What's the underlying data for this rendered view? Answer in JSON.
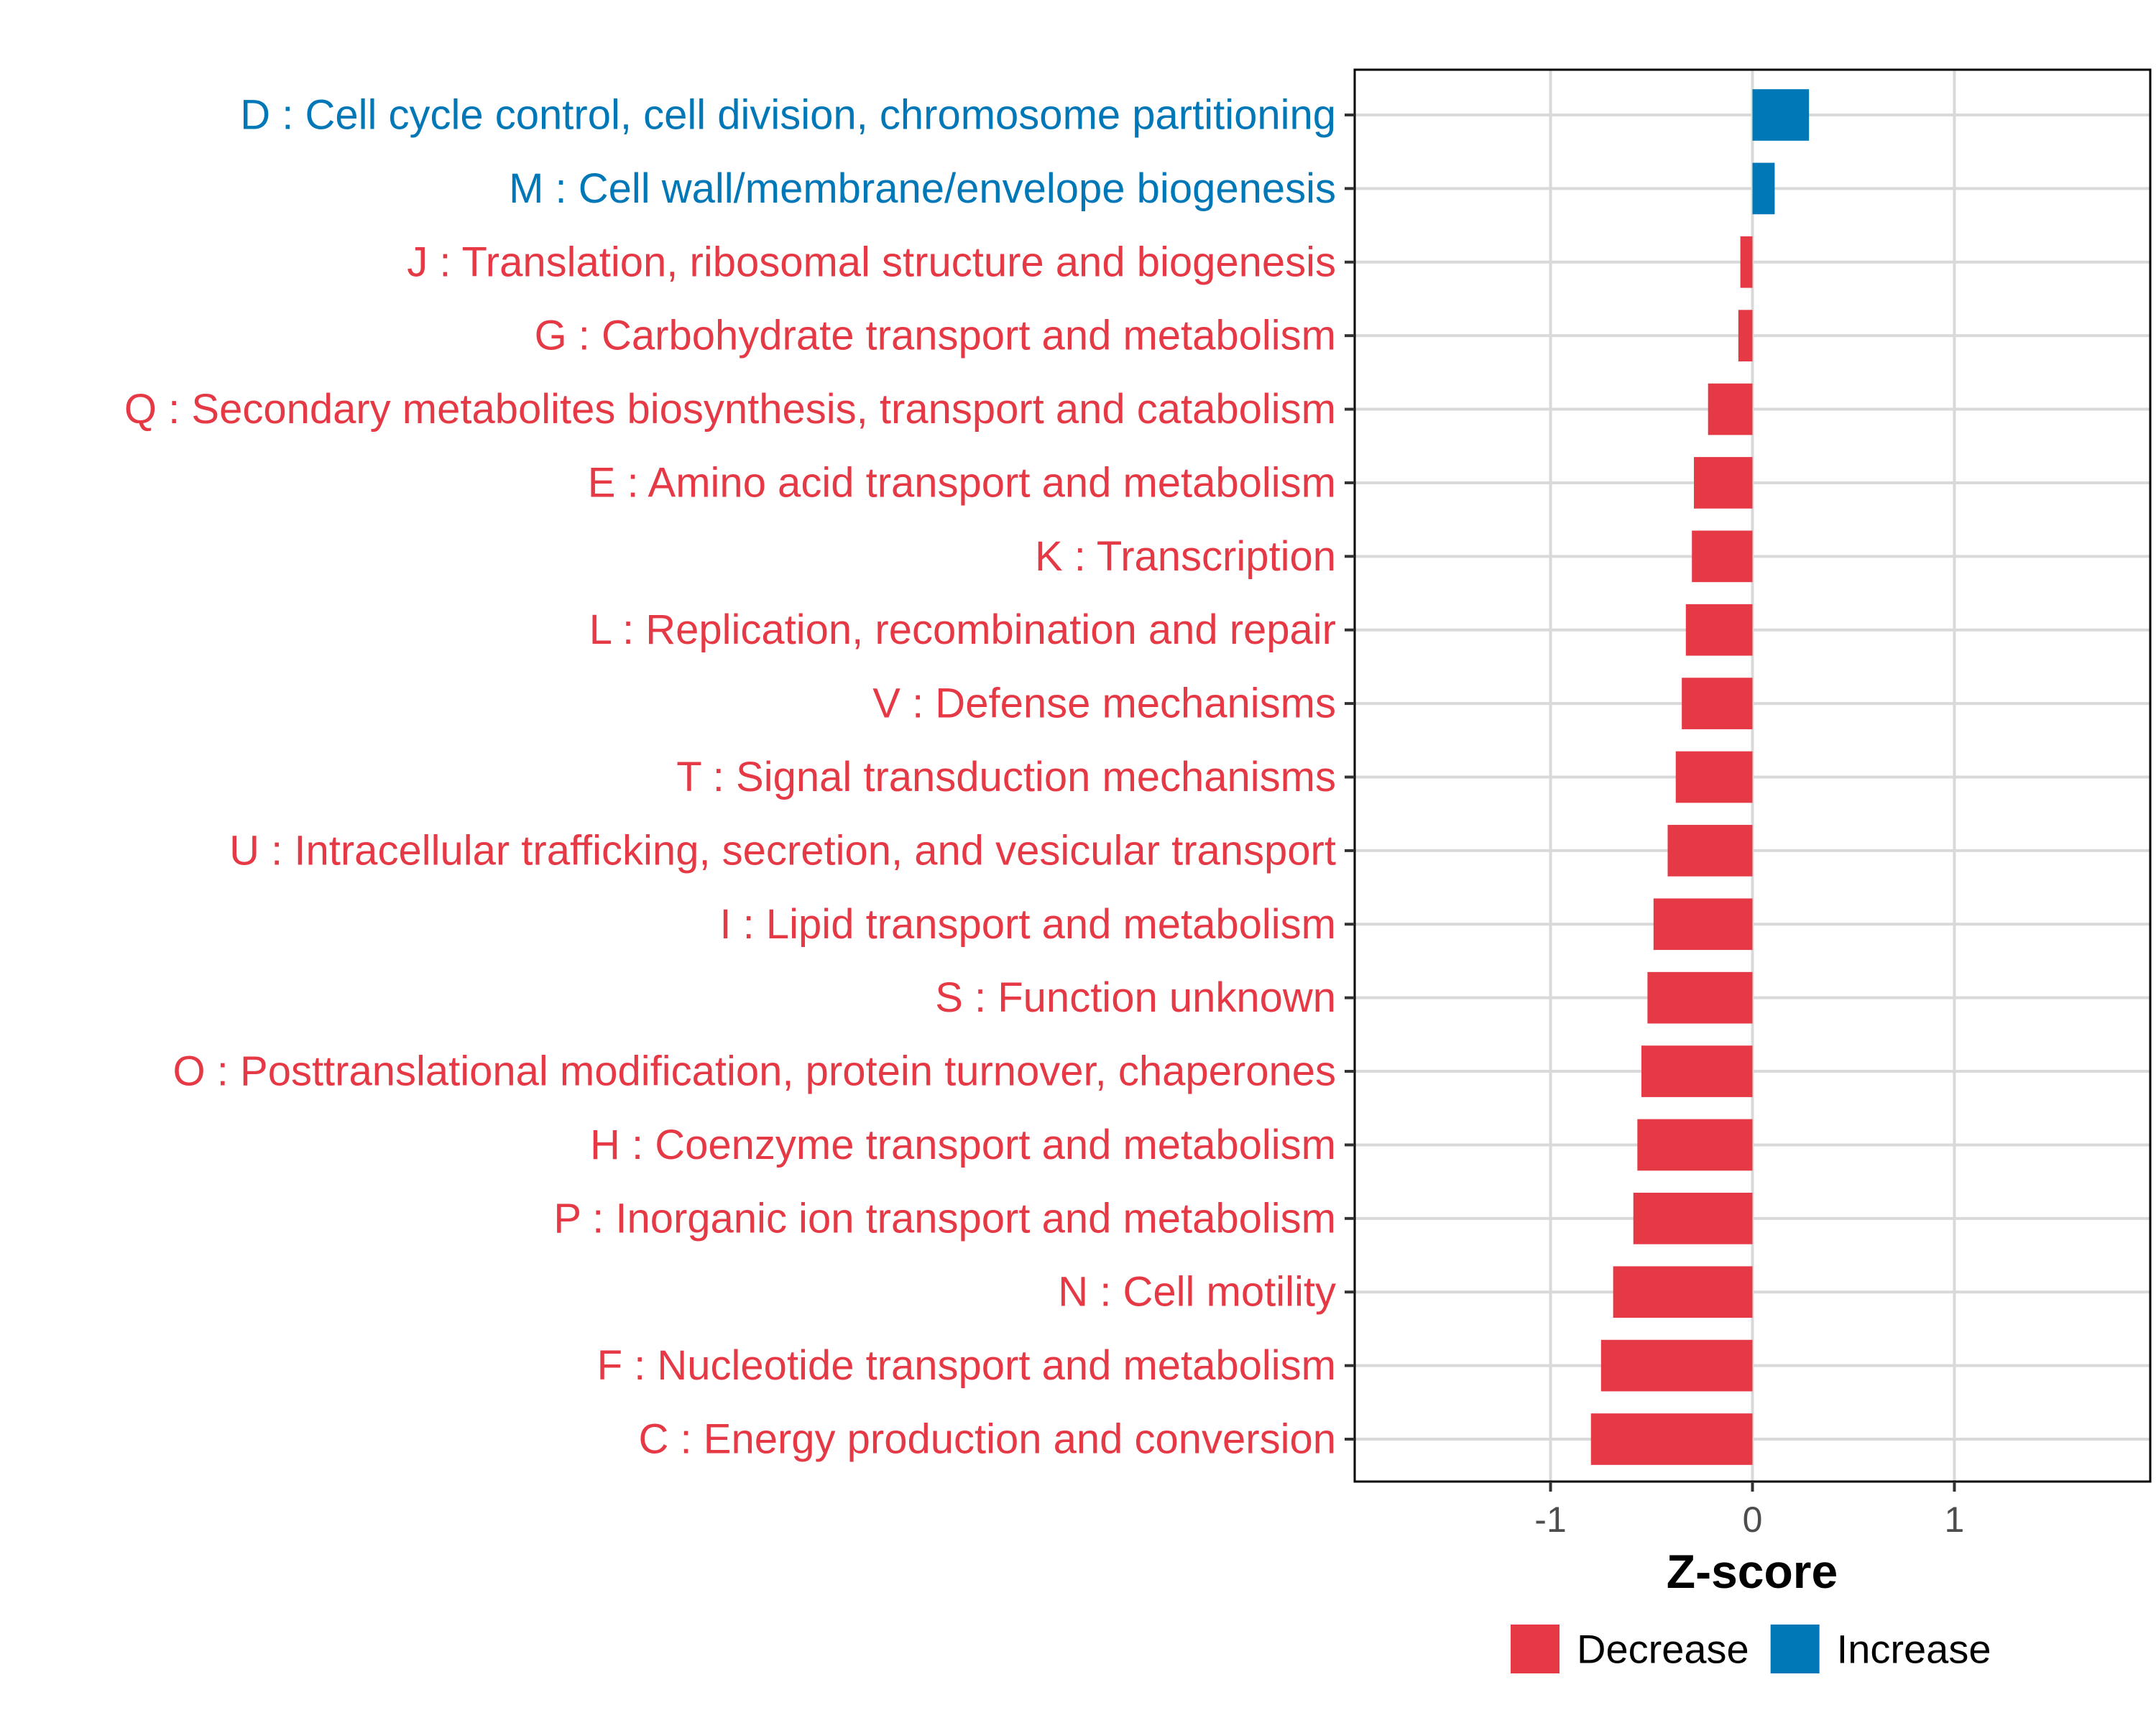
{
  "chart_data": {
    "type": "bar",
    "orientation": "horizontal",
    "xlabel": "Z-score",
    "ylabel": "",
    "xlim": [
      -1.97,
      1.97
    ],
    "xticks": [
      -1,
      0,
      1
    ],
    "xtick_labels": [
      "-1",
      "0",
      "1"
    ],
    "grid": true,
    "legend_position": "bottom",
    "categories": [
      "D : Cell cycle control, cell division, chromosome partitioning",
      "M : Cell wall/membrane/envelope biogenesis",
      "J : Translation, ribosomal structure and biogenesis",
      "G : Carbohydrate transport and metabolism",
      "Q : Secondary metabolites biosynthesis, transport and catabolism",
      "E : Amino acid transport and metabolism",
      "K : Transcription",
      "L : Replication, recombination and repair",
      "V : Defense mechanisms",
      "T : Signal transduction mechanisms",
      "U : Intracellular trafficking, secretion, and vesicular transport",
      "I : Lipid transport and metabolism",
      "S : Function unknown",
      "O : Posttranslational modification, protein turnover, chaperones",
      "H : Coenzyme transport and metabolism",
      "P : Inorganic ion transport and metabolism",
      "N : Cell motility",
      "F : Nucleotide transport and metabolism",
      "C : Energy production and conversion"
    ],
    "values": [
      0.28,
      0.11,
      -0.06,
      -0.07,
      -0.22,
      -0.29,
      -0.3,
      -0.33,
      -0.35,
      -0.38,
      -0.42,
      -0.49,
      -0.52,
      -0.55,
      -0.57,
      -0.59,
      -0.69,
      -0.75,
      -0.8
    ],
    "groups": [
      "Increase",
      "Increase",
      "Decrease",
      "Decrease",
      "Decrease",
      "Decrease",
      "Decrease",
      "Decrease",
      "Decrease",
      "Decrease",
      "Decrease",
      "Decrease",
      "Decrease",
      "Decrease",
      "Decrease",
      "Decrease",
      "Decrease",
      "Decrease",
      "Decrease"
    ],
    "legend": [
      {
        "name": "Decrease",
        "color": "#E63946"
      },
      {
        "name": "Increase",
        "color": "#0077B6"
      }
    ]
  }
}
